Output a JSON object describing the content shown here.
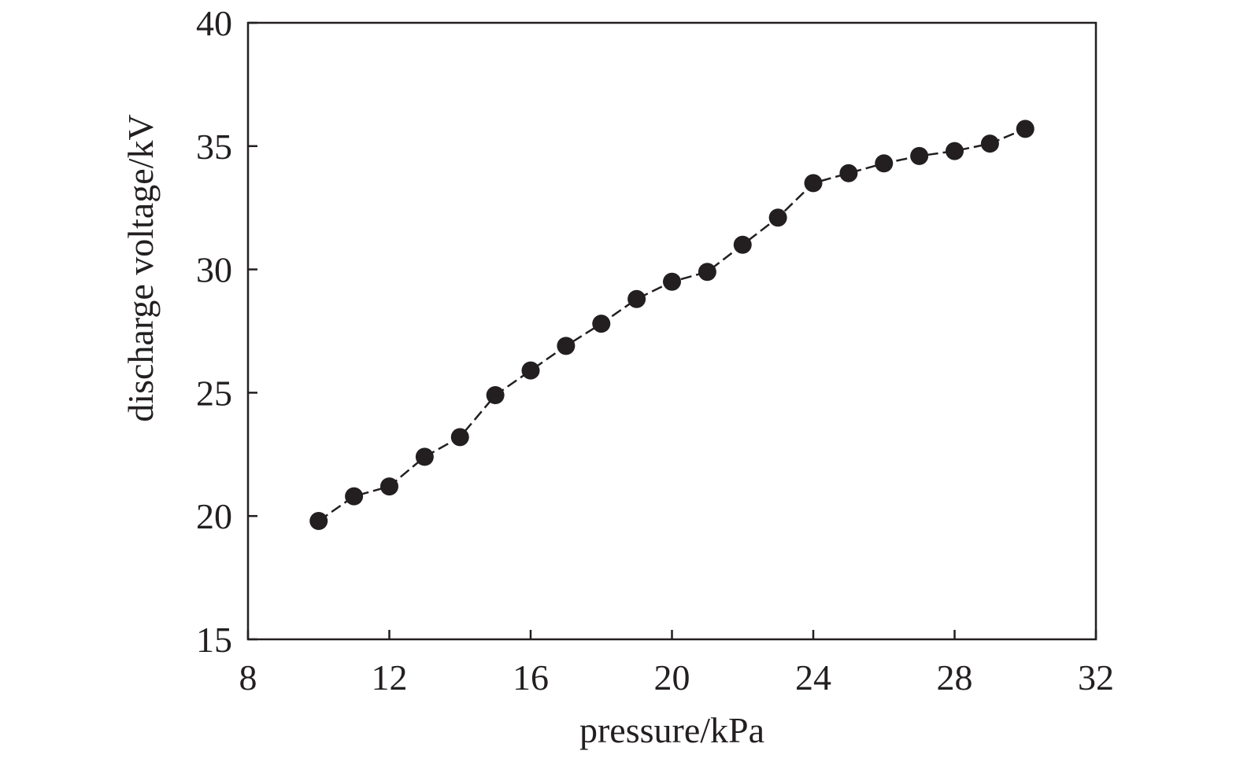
{
  "chart_data": {
    "type": "line",
    "title": "",
    "xlabel": "pressure/kPa",
    "ylabel": "discharge voltage/kV",
    "xlim": [
      8,
      32
    ],
    "ylim": [
      15,
      40
    ],
    "x_ticks": [
      "8",
      "12",
      "16",
      "20",
      "24",
      "28",
      "32"
    ],
    "y_ticks": [
      "15",
      "20",
      "25",
      "30",
      "35",
      "40"
    ],
    "grid": false,
    "legend": "none",
    "line_style": "dashed",
    "marker": "filled-circle",
    "colors": {
      "series": "#231f20",
      "axis": "#231f20"
    },
    "series": [
      {
        "x": [
          10,
          11,
          12,
          13,
          14,
          15,
          16,
          17,
          18,
          19,
          20,
          21,
          22,
          23,
          24,
          25,
          26,
          27,
          28,
          29,
          30
        ],
        "y": [
          19.8,
          20.8,
          21.2,
          22.4,
          23.2,
          24.9,
          25.9,
          26.9,
          27.8,
          28.8,
          29.5,
          29.9,
          31.0,
          32.1,
          33.5,
          33.9,
          34.3,
          34.6,
          34.8,
          35.1,
          35.7
        ]
      }
    ]
  }
}
